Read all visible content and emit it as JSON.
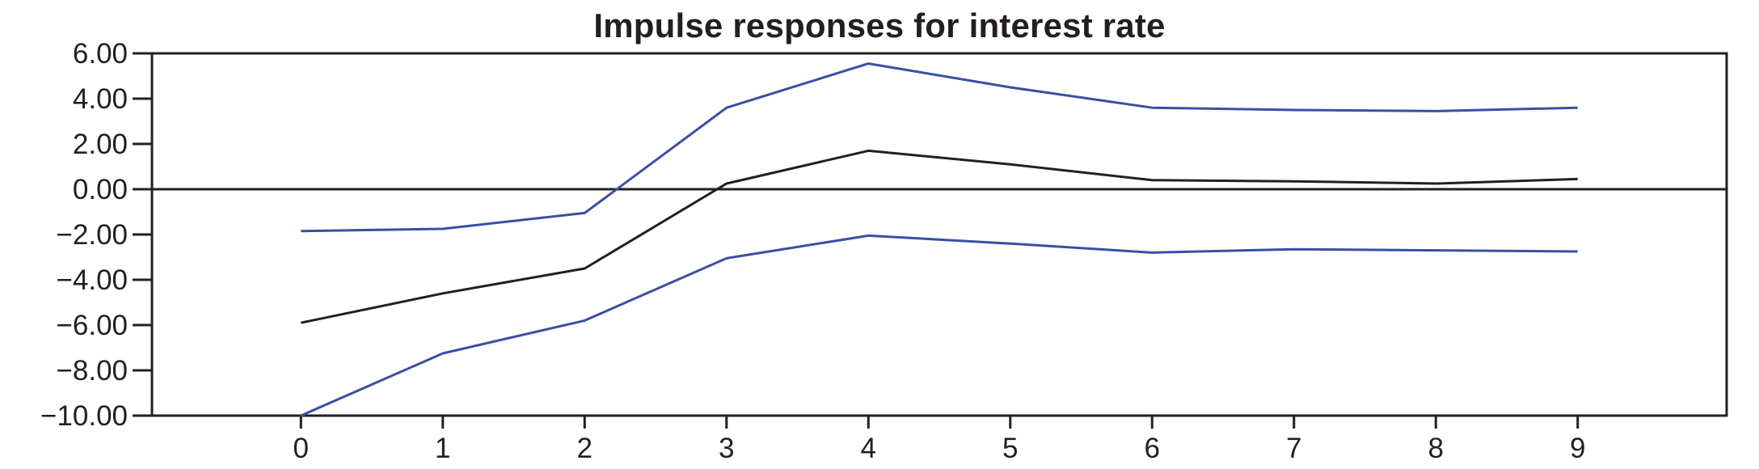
{
  "chart_data": {
    "type": "line",
    "title": "Impulse responses for interest rate",
    "xlabel": "",
    "ylabel": "",
    "x": [
      0,
      1,
      2,
      3,
      4,
      5,
      6,
      7,
      8,
      9
    ],
    "xlim": [
      -1.05,
      10.05
    ],
    "ylim": [
      -10,
      6
    ],
    "yticks": [
      6,
      4,
      2,
      0,
      -2,
      -4,
      -6,
      -8,
      -10
    ],
    "ytick_labels": [
      "6.00",
      "4.00",
      "2.00",
      "0.00",
      "−2.00",
      "−4.00",
      "−6.00",
      "−8.00",
      "−10.00"
    ],
    "xticks": [
      0,
      1,
      2,
      3,
      4,
      5,
      6,
      7,
      8,
      9
    ],
    "xtick_labels": [
      "0",
      "1",
      "2",
      "3",
      "4",
      "5",
      "6",
      "7",
      "8",
      "9"
    ],
    "zero_line": true,
    "grid": false,
    "legend": "none",
    "series": [
      {
        "color": "#3a4fa3",
        "values": [
          -1.85,
          -1.75,
          -1.05,
          3.6,
          5.55,
          4.5,
          3.6,
          3.5,
          3.45,
          3.6
        ]
      },
      {
        "color": "#231f20",
        "values": [
          -5.9,
          -4.6,
          -3.5,
          0.25,
          1.7,
          1.1,
          0.4,
          0.35,
          0.25,
          0.45
        ]
      },
      {
        "color": "#3a4fa3",
        "values": [
          -10.0,
          -7.25,
          -5.8,
          -3.05,
          -2.05,
          -2.4,
          -2.8,
          -2.65,
          -2.7,
          -2.75
        ]
      }
    ]
  }
}
